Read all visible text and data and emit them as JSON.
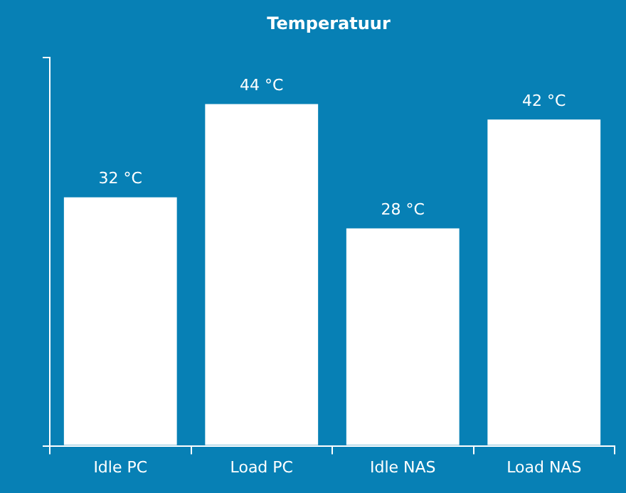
{
  "chart_data": {
    "type": "bar",
    "title": "Temperatuur",
    "categories": [
      "Idle PC",
      "Load PC",
      "Idle NAS",
      "Load NAS"
    ],
    "values": [
      32,
      44,
      28,
      42
    ],
    "value_labels": [
      "32 °C",
      "44 °C",
      "28 °C",
      "42 °C"
    ],
    "color": "#ffffff",
    "ylim": [
      0,
      50
    ],
    "yticks": [
      {
        "value": 0,
        "label": null
      },
      {
        "value": 50,
        "label": null
      }
    ],
    "tick_labels": "x",
    "grid": false,
    "legend": false
  }
}
